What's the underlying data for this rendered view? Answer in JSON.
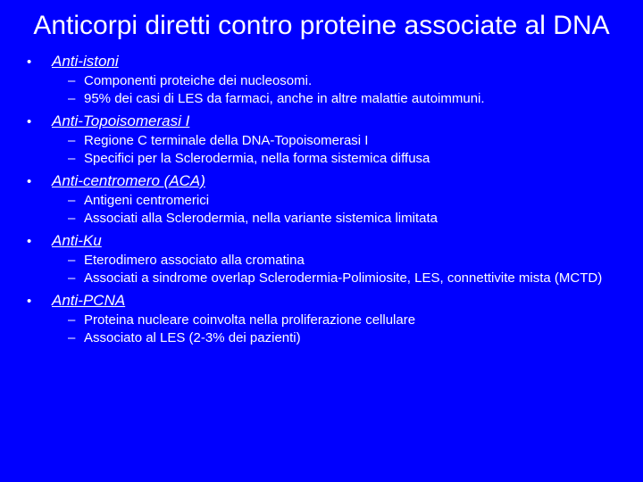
{
  "colors": {
    "background": "#0000ff",
    "text": "#ffffff"
  },
  "typography": {
    "family": "Comic Sans MS",
    "title_fontsize": 30,
    "item_fontsize": 17,
    "sub_fontsize": 15
  },
  "title": "Anticorpi diretti contro proteine associate al DNA",
  "items": [
    {
      "label": "Anti-istoni",
      "subs": [
        "Componenti proteiche dei nucleosomi.",
        "95% dei casi di LES da farmaci, anche in altre malattie autoimmuni."
      ]
    },
    {
      "label": "Anti-Topoisomerasi I",
      "subs": [
        "Regione C terminale della DNA-Topoisomerasi I",
        "Specifici per la Sclerodermia, nella forma sistemica diffusa"
      ]
    },
    {
      "label": "Anti-centromero (ACA)",
      "subs": [
        "Antigeni centromerici",
        "Associati alla Sclerodermia, nella variante sistemica limitata"
      ]
    },
    {
      "label": "Anti-Ku",
      "subs": [
        "Eterodimero associato alla cromatina",
        "Associati a sindrome overlap Sclerodermia-Polimiosite, LES, connettivite mista (MCTD)"
      ],
      "justify": [
        false,
        true
      ]
    },
    {
      "label": "Anti-PCNA",
      "subs": [
        "Proteina nucleare coinvolta nella  proliferazione cellulare",
        "Associato al LES (2-3% dei pazienti)"
      ]
    }
  ]
}
